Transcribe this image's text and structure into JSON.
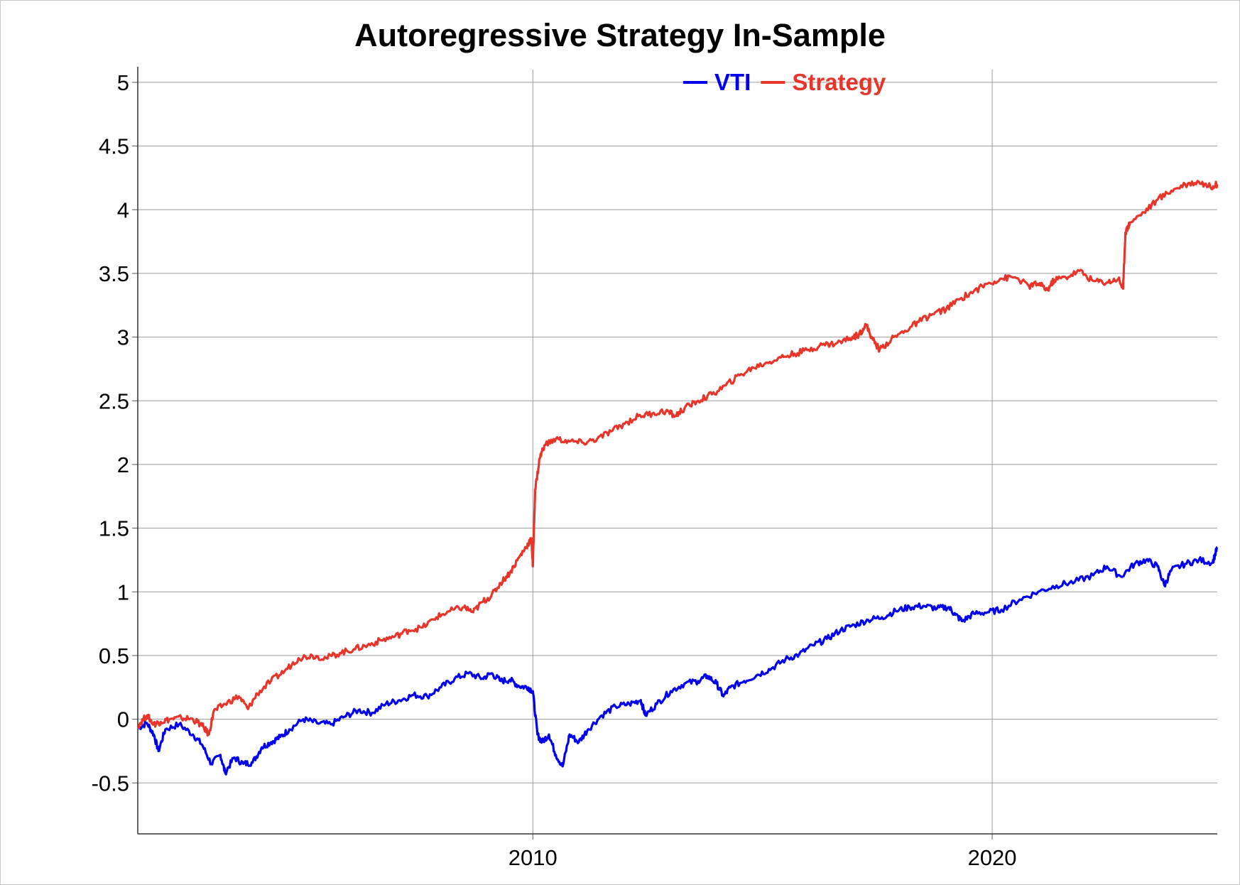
{
  "chart_data": {
    "type": "line",
    "title": "Autoregressive Strategy In-Sample",
    "xlabel": "",
    "ylabel": "",
    "xlim": [
      2001.4,
      2024.9
    ],
    "ylim": [
      -0.9,
      5.1
    ],
    "x_ticks": [
      2010,
      2020
    ],
    "y_ticks": [
      -0.5,
      0,
      0.5,
      1,
      1.5,
      2,
      2.5,
      3,
      3.5,
      4,
      4.5,
      5
    ],
    "y_tick_labels": [
      "-0.5",
      "0",
      "0.5",
      "1",
      "1.5",
      "2",
      "2.5",
      "3",
      "3.5",
      "4",
      "4.5",
      "5"
    ],
    "grid": true,
    "legend_position": "top-center",
    "series": [
      {
        "name": "VTI",
        "color": "#0000ee",
        "points": [
          [
            2001.4,
            -0.07
          ],
          [
            2001.6,
            -0.03
          ],
          [
            2001.75,
            -0.12
          ],
          [
            2001.85,
            -0.25
          ],
          [
            2002.0,
            -0.08
          ],
          [
            2002.3,
            -0.04
          ],
          [
            2002.6,
            -0.12
          ],
          [
            2002.8,
            -0.2
          ],
          [
            2003.0,
            -0.35
          ],
          [
            2003.2,
            -0.28
          ],
          [
            2003.3,
            -0.42
          ],
          [
            2003.5,
            -0.3
          ],
          [
            2003.7,
            -0.35
          ],
          [
            2003.9,
            -0.34
          ],
          [
            2004.1,
            -0.22
          ],
          [
            2004.3,
            -0.18
          ],
          [
            2004.5,
            -0.14
          ],
          [
            2004.7,
            -0.08
          ],
          [
            2005.0,
            0.0
          ],
          [
            2005.3,
            -0.03
          ],
          [
            2005.6,
            -0.04
          ],
          [
            2005.9,
            0.02
          ],
          [
            2006.2,
            0.07
          ],
          [
            2006.5,
            0.05
          ],
          [
            2006.8,
            0.12
          ],
          [
            2007.1,
            0.15
          ],
          [
            2007.4,
            0.19
          ],
          [
            2007.7,
            0.18
          ],
          [
            2008.0,
            0.25
          ],
          [
            2008.3,
            0.32
          ],
          [
            2008.6,
            0.36
          ],
          [
            2008.9,
            0.32
          ],
          [
            2009.1,
            0.36
          ],
          [
            2009.3,
            0.3
          ],
          [
            2009.5,
            0.31
          ],
          [
            2009.7,
            0.26
          ],
          [
            2009.9,
            0.25
          ],
          [
            2010.0,
            0.22
          ],
          [
            2010.1,
            -0.12
          ],
          [
            2010.2,
            -0.18
          ],
          [
            2010.35,
            -0.12
          ],
          [
            2010.5,
            -0.28
          ],
          [
            2010.65,
            -0.37
          ],
          [
            2010.8,
            -0.12
          ],
          [
            2011.0,
            -0.18
          ],
          [
            2011.2,
            -0.08
          ],
          [
            2011.5,
            0.03
          ],
          [
            2011.8,
            0.1
          ],
          [
            2012.1,
            0.12
          ],
          [
            2012.35,
            0.15
          ],
          [
            2012.45,
            0.03
          ],
          [
            2012.7,
            0.12
          ],
          [
            2013.0,
            0.22
          ],
          [
            2013.3,
            0.28
          ],
          [
            2013.6,
            0.3
          ],
          [
            2013.8,
            0.34
          ],
          [
            2014.0,
            0.28
          ],
          [
            2014.15,
            0.18
          ],
          [
            2014.3,
            0.25
          ],
          [
            2014.6,
            0.3
          ],
          [
            2014.9,
            0.35
          ],
          [
            2015.2,
            0.4
          ],
          [
            2015.5,
            0.47
          ],
          [
            2015.8,
            0.51
          ],
          [
            2016.1,
            0.58
          ],
          [
            2016.4,
            0.63
          ],
          [
            2016.7,
            0.7
          ],
          [
            2017.0,
            0.74
          ],
          [
            2017.3,
            0.78
          ],
          [
            2017.6,
            0.8
          ],
          [
            2017.9,
            0.85
          ],
          [
            2018.2,
            0.88
          ],
          [
            2018.5,
            0.89
          ],
          [
            2018.8,
            0.87
          ],
          [
            2019.05,
            0.88
          ],
          [
            2019.2,
            0.82
          ],
          [
            2019.35,
            0.77
          ],
          [
            2019.6,
            0.83
          ],
          [
            2019.9,
            0.84
          ],
          [
            2020.2,
            0.86
          ],
          [
            2020.6,
            0.94
          ],
          [
            2021.0,
            1.0
          ],
          [
            2021.4,
            1.05
          ],
          [
            2021.8,
            1.08
          ],
          [
            2022.2,
            1.13
          ],
          [
            2022.5,
            1.2
          ],
          [
            2022.8,
            1.12
          ],
          [
            2023.1,
            1.22
          ],
          [
            2023.35,
            1.25
          ],
          [
            2023.6,
            1.2
          ],
          [
            2023.75,
            1.05
          ],
          [
            2023.9,
            1.17
          ],
          [
            2024.2,
            1.22
          ],
          [
            2024.5,
            1.25
          ],
          [
            2024.8,
            1.23
          ],
          [
            2024.9,
            1.35
          ]
        ]
      },
      {
        "name": "Strategy",
        "color": "#e8352a",
        "points": [
          [
            2001.4,
            -0.05
          ],
          [
            2001.6,
            0.03
          ],
          [
            2001.75,
            -0.04
          ],
          [
            2001.9,
            -0.02
          ],
          [
            2002.1,
            0.0
          ],
          [
            2002.35,
            0.01
          ],
          [
            2002.6,
            0.0
          ],
          [
            2002.8,
            -0.05
          ],
          [
            2002.95,
            -0.12
          ],
          [
            2003.05,
            0.06
          ],
          [
            2003.3,
            0.12
          ],
          [
            2003.6,
            0.18
          ],
          [
            2003.8,
            0.08
          ],
          [
            2004.0,
            0.2
          ],
          [
            2004.3,
            0.3
          ],
          [
            2004.6,
            0.38
          ],
          [
            2004.9,
            0.48
          ],
          [
            2005.2,
            0.5
          ],
          [
            2005.5,
            0.48
          ],
          [
            2005.8,
            0.52
          ],
          [
            2006.1,
            0.55
          ],
          [
            2006.4,
            0.58
          ],
          [
            2006.7,
            0.62
          ],
          [
            2007.0,
            0.65
          ],
          [
            2007.3,
            0.7
          ],
          [
            2007.6,
            0.72
          ],
          [
            2007.9,
            0.8
          ],
          [
            2008.2,
            0.85
          ],
          [
            2008.5,
            0.88
          ],
          [
            2008.7,
            0.84
          ],
          [
            2008.9,
            0.92
          ],
          [
            2009.1,
            0.97
          ],
          [
            2009.3,
            1.07
          ],
          [
            2009.5,
            1.15
          ],
          [
            2009.7,
            1.27
          ],
          [
            2009.85,
            1.35
          ],
          [
            2009.97,
            1.42
          ],
          [
            2010.0,
            1.2
          ],
          [
            2010.05,
            1.8
          ],
          [
            2010.15,
            2.05
          ],
          [
            2010.25,
            2.15
          ],
          [
            2010.5,
            2.2
          ],
          [
            2010.8,
            2.18
          ],
          [
            2011.1,
            2.17
          ],
          [
            2011.4,
            2.2
          ],
          [
            2011.7,
            2.26
          ],
          [
            2012.0,
            2.32
          ],
          [
            2012.3,
            2.38
          ],
          [
            2012.6,
            2.4
          ],
          [
            2012.9,
            2.42
          ],
          [
            2013.1,
            2.38
          ],
          [
            2013.3,
            2.44
          ],
          [
            2013.6,
            2.5
          ],
          [
            2013.9,
            2.55
          ],
          [
            2014.2,
            2.62
          ],
          [
            2014.5,
            2.7
          ],
          [
            2014.8,
            2.76
          ],
          [
            2015.1,
            2.8
          ],
          [
            2015.4,
            2.84
          ],
          [
            2015.7,
            2.87
          ],
          [
            2016.0,
            2.9
          ],
          [
            2016.3,
            2.94
          ],
          [
            2016.6,
            2.95
          ],
          [
            2016.9,
            2.99
          ],
          [
            2017.1,
            3.02
          ],
          [
            2017.25,
            3.1
          ],
          [
            2017.4,
            2.98
          ],
          [
            2017.55,
            2.9
          ],
          [
            2017.8,
            2.98
          ],
          [
            2018.1,
            3.05
          ],
          [
            2018.4,
            3.12
          ],
          [
            2018.7,
            3.18
          ],
          [
            2019.0,
            3.22
          ],
          [
            2019.3,
            3.3
          ],
          [
            2019.6,
            3.36
          ],
          [
            2019.9,
            3.42
          ],
          [
            2020.2,
            3.46
          ],
          [
            2020.5,
            3.47
          ],
          [
            2020.8,
            3.4
          ],
          [
            2021.0,
            3.42
          ],
          [
            2021.2,
            3.37
          ],
          [
            2021.35,
            3.45
          ],
          [
            2021.6,
            3.47
          ],
          [
            2021.9,
            3.52
          ],
          [
            2022.2,
            3.44
          ],
          [
            2022.5,
            3.43
          ],
          [
            2022.75,
            3.46
          ],
          [
            2022.85,
            3.38
          ],
          [
            2022.9,
            3.82
          ],
          [
            2023.0,
            3.9
          ],
          [
            2023.3,
            3.98
          ],
          [
            2023.6,
            4.08
          ],
          [
            2023.9,
            4.15
          ],
          [
            2024.2,
            4.2
          ],
          [
            2024.5,
            4.22
          ],
          [
            2024.75,
            4.18
          ],
          [
            2024.9,
            4.2
          ]
        ]
      }
    ]
  }
}
